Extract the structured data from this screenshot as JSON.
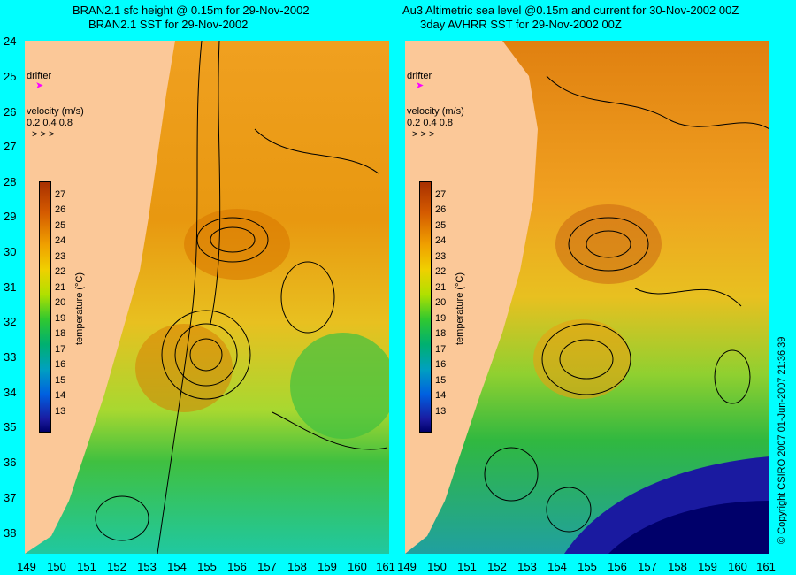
{
  "left_title": {
    "line1": "BRAN2.1 sfc height @ 0.15m for 29-Nov-2002",
    "line2": "BRAN2.1 SST for 29-Nov-2002"
  },
  "right_title": {
    "line1": "Au3 Altimetric sea level  @0.15m and current for 30-Nov-2002 00Z",
    "line2": "3day AVHRR SST for 29-Nov-2002 00Z"
  },
  "lat_ticks": [
    "24",
    "25",
    "26",
    "27",
    "28",
    "29",
    "30",
    "31",
    "32",
    "33",
    "34",
    "35",
    "36",
    "37",
    "38"
  ],
  "lon_ticks": [
    "149",
    "150",
    "151",
    "152",
    "153",
    "154",
    "155",
    "156",
    "157",
    "158",
    "159",
    "160",
    "161"
  ],
  "colorbar": {
    "ticks": [
      "27",
      "26",
      "25",
      "24",
      "23",
      "22",
      "21",
      "20",
      "19",
      "18",
      "17",
      "16",
      "15",
      "14",
      "13"
    ],
    "unit": "temperature (°C)"
  },
  "legend": {
    "drifter": "drifter",
    "velocity_label": "velocity (m/s)",
    "velocity_values": "0.2 0.4 0.8"
  },
  "copyright": "© Copyright CSIRO 2007   01-Jun-2007 21:36:39",
  "colors": {
    "land": "#fbc898",
    "warm": "#f0a000",
    "cool": "#30c830",
    "cold": "#1a1aa0",
    "background": "#00ffff"
  }
}
